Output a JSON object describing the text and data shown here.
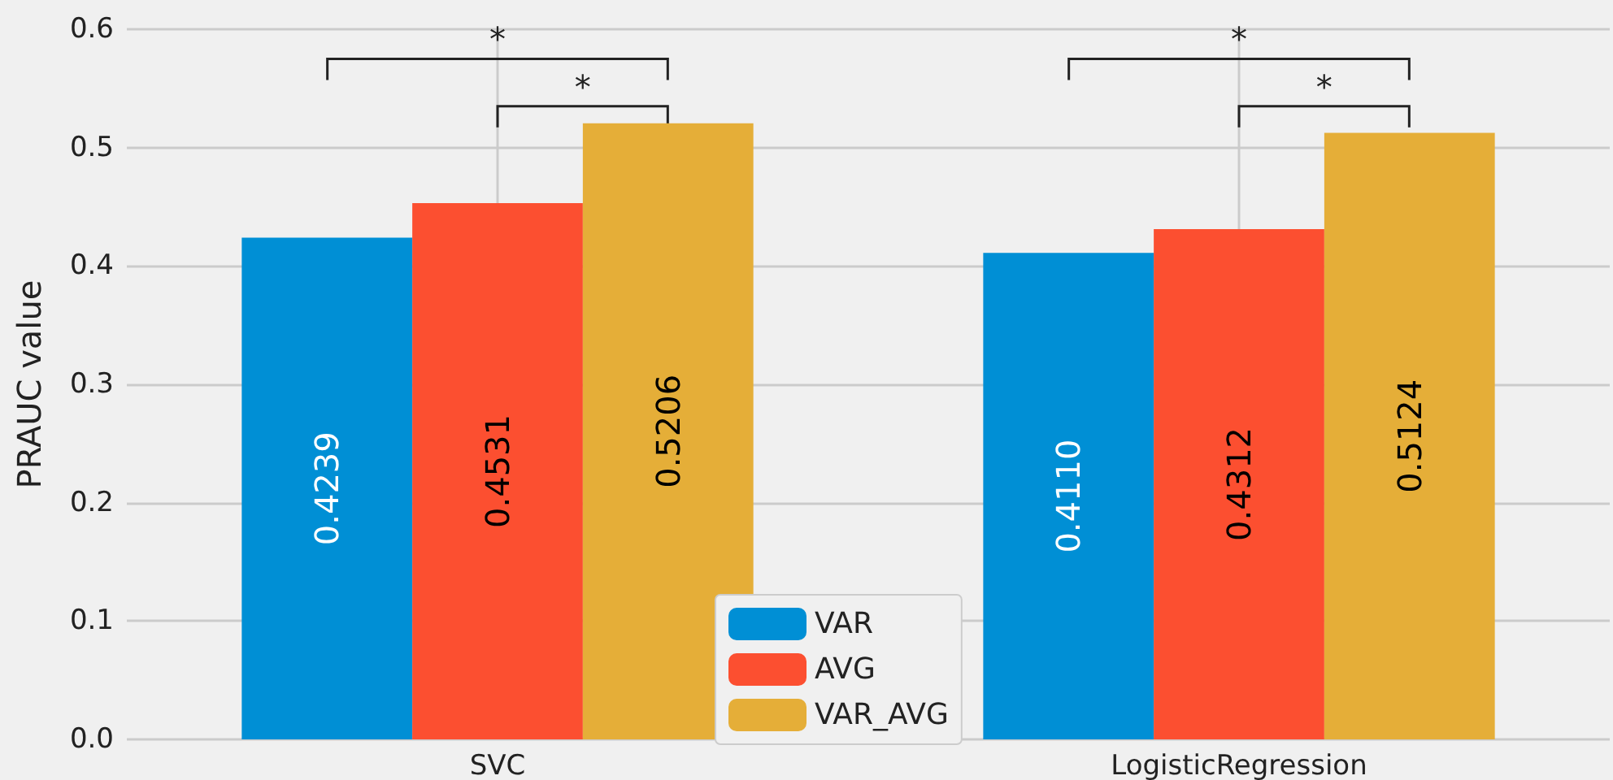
{
  "chart_data": {
    "type": "bar",
    "ylabel": "PRAUC value",
    "categories": [
      "SVC",
      "LogisticRegression"
    ],
    "series": [
      {
        "name": "VAR",
        "color": "#008fd5",
        "values": [
          0.4239,
          0.411
        ],
        "value_labels": [
          "0.4239",
          "0.4110"
        ]
      },
      {
        "name": "AVG",
        "color": "#fc4f30",
        "values": [
          0.4531,
          0.4312
        ],
        "value_labels": [
          "0.4531",
          "0.4312"
        ]
      },
      {
        "name": "VAR_AVG",
        "color": "#e5ae38",
        "values": [
          0.5206,
          0.5124
        ],
        "value_labels": [
          "0.5206",
          "0.5124"
        ]
      }
    ],
    "ylim": [
      0,
      0.6
    ],
    "yticks": [
      {
        "value": 0,
        "label": "0.0"
      },
      {
        "value": 0.1,
        "label": "0.1"
      },
      {
        "value": 0.2,
        "label": "0.2"
      },
      {
        "value": 0.3,
        "label": "0.3"
      },
      {
        "value": 0.4,
        "label": "0.4"
      },
      {
        "value": 0.5,
        "label": "0.5"
      },
      {
        "value": 0.6,
        "label": "0.6"
      }
    ],
    "grid": true,
    "legend": "bottom",
    "annotations": [
      "*",
      "*",
      "*",
      "*"
    ]
  }
}
